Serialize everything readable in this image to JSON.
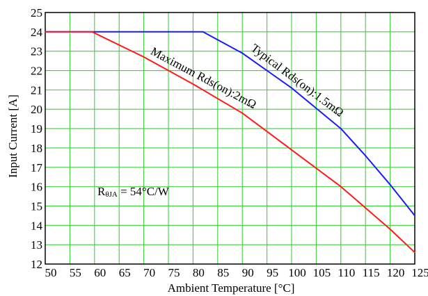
{
  "chart_data": {
    "type": "line",
    "xlabel": "Ambient Temperature [°C]",
    "ylabel": "Input Current [A]",
    "xlim": [
      50,
      125
    ],
    "ylim": [
      12,
      25
    ],
    "xticks": [
      50,
      55,
      60,
      65,
      70,
      75,
      80,
      85,
      90,
      95,
      100,
      105,
      110,
      115,
      120,
      125
    ],
    "yticks": [
      12,
      13,
      14,
      15,
      16,
      17,
      18,
      19,
      20,
      21,
      22,
      23,
      24,
      25
    ],
    "grid": true,
    "colors": {
      "grid": "#3cd23c",
      "typical": "#1a1aff",
      "maximum": "#ff1a1a"
    },
    "series": [
      {
        "name": "Typical Rds(on):1.5mΩ",
        "color": "#1a1aff",
        "x": [
          50,
          82,
          90,
          100,
          110,
          115,
          120,
          125
        ],
        "y": [
          24,
          24,
          22.9,
          21.1,
          19.0,
          17.6,
          16.1,
          14.5
        ]
      },
      {
        "name": "Maximum Rds(on):2mΩ",
        "color": "#ff1a1a",
        "x": [
          50,
          59.5,
          70,
          80,
          90,
          100,
          110,
          115,
          120,
          125
        ],
        "y": [
          24,
          24,
          22.7,
          21.3,
          19.8,
          17.9,
          16.0,
          14.9,
          13.8,
          12.6
        ]
      }
    ],
    "annotations": {
      "rtheta_main": "R",
      "rtheta_sub": "θJA",
      "rtheta_value": " = 54°C/W"
    }
  }
}
